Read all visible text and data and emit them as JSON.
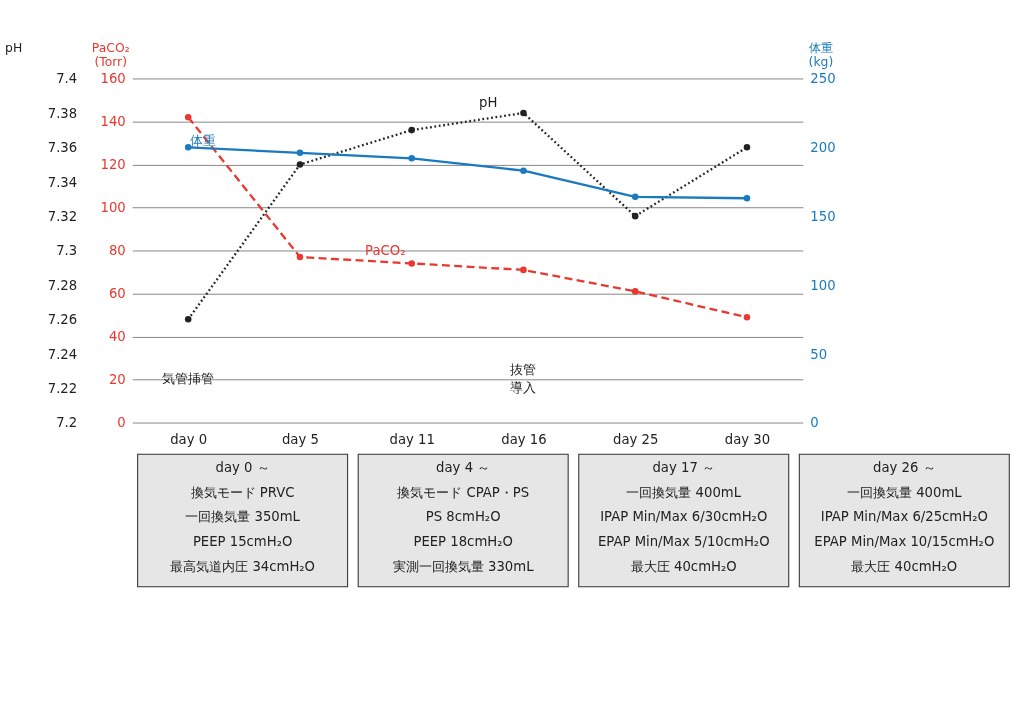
{
  "chart_data": {
    "type": "line",
    "categories": [
      "day 0",
      "day 5",
      "day 11",
      "day 16",
      "day 25",
      "day 30"
    ],
    "ylabel": "PaCO₂\n(Torr)",
    "ylim": [
      0,
      160
    ],
    "yticks": [
      0,
      20,
      40,
      60,
      80,
      100,
      120,
      140,
      160
    ],
    "y2label": "体重\n(kg)",
    "y2lim": [
      0,
      250
    ],
    "y2ticks": [
      0,
      50,
      100,
      150,
      200,
      250
    ],
    "y3label": "pH",
    "y3lim": [
      7.2,
      7.4
    ],
    "y3ticks": [
      7.2,
      7.22,
      7.24,
      7.26,
      7.28,
      7.3,
      7.32,
      7.34,
      7.36,
      7.38,
      7.4
    ],
    "grid": "y",
    "marker": "circle",
    "series": [
      {
        "name": "pH",
        "color": "#222222",
        "axis": "y3",
        "line_style": "dotted",
        "values": [
          7.26,
          7.35,
          7.37,
          7.38,
          7.32,
          7.36
        ]
      },
      {
        "name": "PaCO₂",
        "color": "#e8382f",
        "axis": "y",
        "line_style": "dashed",
        "values": [
          142,
          77,
          74,
          71,
          61,
          49
        ]
      },
      {
        "name": "体重",
        "color": "#1a7abf",
        "axis": "y2",
        "line_style": "solid",
        "values": [
          200,
          196,
          192,
          183,
          164,
          163
        ]
      }
    ],
    "annotations": [
      "気管挿管",
      "抜管",
      "導入",
      "day 0 ～",
      "換気モード PRVC",
      "一回換気量 350mL",
      "PEEP 15cmH₂O",
      "最高気道内圧 34cmH₂O",
      "day 4 ～",
      "換気モード CPAP・PS",
      "PS 8cmH₂O",
      "PEEP 18cmH₂O",
      "実測一回換気量 330mL",
      "day 17 ～",
      "一回換気量 400mL",
      "IPAP Min/Max 6/30cmH₂O",
      "EPAP Min/Max 5/10cmH₂O",
      "最大圧 40cmH₂O",
      "day 26 ～",
      "一回換気量 400mL",
      "IPAP Min/Max 6/25cmH₂O",
      "EPAP Min/Max 10/15cmH₂O",
      "最大圧 40cmH₂O"
    ]
  }
}
